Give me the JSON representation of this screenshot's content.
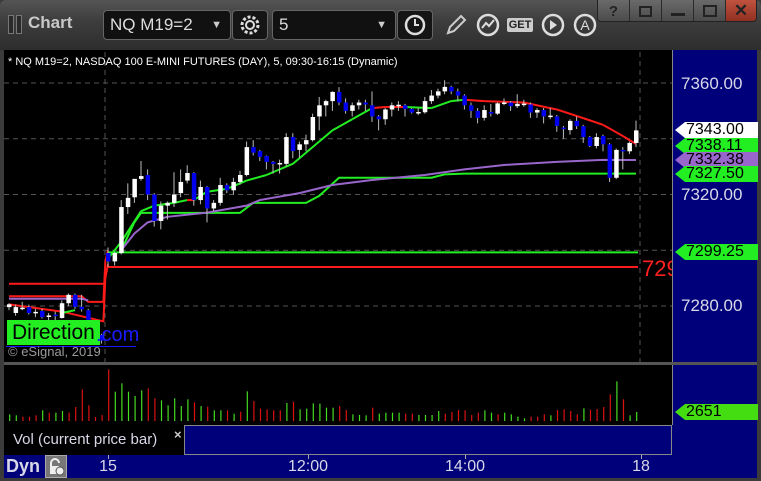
{
  "window": {
    "title": "Chart",
    "buttons": [
      "?",
      "restore",
      "minimize",
      "maximize",
      "close"
    ]
  },
  "toolbar": {
    "symbol": "NQ M19=2",
    "interval": "5",
    "icons": [
      "gear-icon",
      "clock-icon",
      "pencil-icon",
      "chart-wizard-icon",
      "get-icon",
      "play-icon",
      "alert-icon"
    ],
    "get_label": "GET"
  },
  "chart": {
    "header": "* NQ M19=2, NASDAQ 100 E-MINI FUTURES (DAY), 5, 09:30-16:15 (Dynamic)",
    "price_ticks": [
      "7360.00",
      "7320.00",
      "7280.00"
    ],
    "tags": {
      "last": "7343.00",
      "ma": "7338.11",
      "vwap": "7332.38",
      "low_line": "7327.50",
      "level_green": "7299.25"
    },
    "level_red_text": "729",
    "watermark": {
      "main": "Direction",
      "suffix": ".com"
    },
    "copyright": "© eSignal, 2019"
  },
  "volume": {
    "legend": "Vol (current price bar)",
    "close_label": "×",
    "tag": "2651"
  },
  "time_axis": {
    "mode": "Dyn",
    "labels": [
      "15",
      "12:00",
      "14:00",
      "18"
    ]
  },
  "colors": {
    "up_candle": "#ffffff",
    "down_candle": "#0000ee",
    "ma_up": "#22ee22",
    "ma_down": "#ff1a1a",
    "vwap": "#9966cc",
    "axis_bg": "#00007a",
    "vol_up": "#44dd22",
    "vol_down": "#dd1111"
  },
  "chart_data": {
    "type": "candlestick",
    "symbol": "NQ M19=2",
    "bar_interval_minutes": 5,
    "ylim": [
      7258,
      7368
    ],
    "yticks": [
      7280,
      7300,
      7320,
      7340,
      7360
    ],
    "grid": true,
    "candles_ohlc": [
      [
        7279.6,
        7281,
        7278.5,
        7280.6
      ],
      [
        7277.5,
        7280.5,
        7276.5,
        7279.6
      ],
      [
        7279.3,
        7281.5,
        7278.5,
        7279.4
      ],
      [
        7279.6,
        7280.5,
        7277,
        7277.5
      ],
      [
        7277.8,
        7279,
        7276,
        7277.9
      ],
      [
        7278.2,
        7279,
        7275.5,
        7276
      ],
      [
        7276.4,
        7277.5,
        7274,
        7276.6
      ],
      [
        7276.9,
        7278,
        7274.8,
        7276.5
      ],
      [
        7275.7,
        7282,
        7275.5,
        7281
      ],
      [
        7281,
        7284.5,
        7280,
        7284
      ],
      [
        7284,
        7284.5,
        7279,
        7279.7
      ],
      [
        7279.7,
        7284,
        7278,
        7278.8
      ],
      [
        7278.5,
        7279,
        7270,
        7272
      ],
      [
        7272,
        7273,
        7268.5,
        7269.6
      ],
      [
        7269.6,
        7270,
        7266.5,
        7267.6
      ],
      [
        7299,
        7301,
        7294,
        7296
      ],
      [
        7296,
        7299.5,
        7294.5,
        7299
      ],
      [
        7299,
        7318,
        7298.5,
        7315.5
      ],
      [
        7315.5,
        7324,
        7313,
        7318.8
      ],
      [
        7319,
        7325.6,
        7317,
        7325.6
      ],
      [
        7325.6,
        7332,
        7325,
        7326.6
      ],
      [
        7327,
        7329,
        7318,
        7320
      ],
      [
        7320,
        7320.5,
        7308.5,
        7310.5
      ],
      [
        7310.5,
        7317.5,
        7307.5,
        7316
      ],
      [
        7316,
        7317.5,
        7311,
        7317
      ],
      [
        7317,
        7328,
        7315.5,
        7320
      ],
      [
        7320.5,
        7329,
        7319,
        7324.5
      ],
      [
        7325,
        7330.5,
        7324,
        7327.7
      ],
      [
        7327.7,
        7328,
        7316,
        7318
      ],
      [
        7318,
        7325,
        7316.5,
        7322.7
      ],
      [
        7322.7,
        7323,
        7310,
        7315
      ],
      [
        7315,
        7318,
        7314,
        7317
      ],
      [
        7317,
        7326,
        7316,
        7323.4
      ],
      [
        7323.4,
        7324,
        7320.5,
        7321.5
      ],
      [
        7321.5,
        7326,
        7320,
        7324.5
      ],
      [
        7324.5,
        7328.5,
        7323.5,
        7327
      ],
      [
        7327,
        7339,
        7326.5,
        7337
      ],
      [
        7337,
        7339.5,
        7334,
        7335
      ],
      [
        7335.6,
        7336,
        7332,
        7333.5
      ],
      [
        7333.8,
        7334,
        7329,
        7331.7
      ],
      [
        7331.7,
        7332,
        7327.5,
        7331
      ],
      [
        7331,
        7332.5,
        7327.5,
        7331.3
      ],
      [
        7331,
        7342,
        7330,
        7340.6
      ],
      [
        7340.6,
        7342,
        7333,
        7335.6
      ],
      [
        7336,
        7339,
        7333,
        7338
      ],
      [
        7338,
        7341.5,
        7335.5,
        7339.5
      ],
      [
        7339.5,
        7349,
        7339,
        7347.8
      ],
      [
        7348,
        7355,
        7343,
        7352
      ],
      [
        7352,
        7354,
        7348,
        7353.5
      ],
      [
        7353.5,
        7357,
        7350,
        7356.8
      ],
      [
        7356.8,
        7358.5,
        7352,
        7353
      ],
      [
        7353,
        7354.5,
        7349,
        7350
      ],
      [
        7350,
        7353,
        7348,
        7352
      ],
      [
        7352,
        7354,
        7350.5,
        7353
      ],
      [
        7353,
        7354,
        7350,
        7352.3
      ],
      [
        7352,
        7357,
        7346,
        7348
      ],
      [
        7348,
        7348.5,
        7343,
        7347
      ],
      [
        7347,
        7351,
        7345,
        7350.5
      ],
      [
        7350.5,
        7353,
        7348,
        7352
      ],
      [
        7352,
        7353.5,
        7350,
        7352.2
      ],
      [
        7352,
        7352.5,
        7348,
        7350.7
      ],
      [
        7350.7,
        7351,
        7349,
        7349.4
      ],
      [
        7349.4,
        7351,
        7348.5,
        7349.6
      ],
      [
        7349.5,
        7355,
        7349,
        7353.5
      ],
      [
        7353.5,
        7357.5,
        7352.5,
        7355.5
      ],
      [
        7355.5,
        7358,
        7354.5,
        7357
      ],
      [
        7357,
        7361,
        7356,
        7358.6
      ],
      [
        7358.6,
        7359,
        7356,
        7357
      ],
      [
        7357,
        7358,
        7353.5,
        7355.5
      ],
      [
        7355.5,
        7356,
        7350.5,
        7352
      ],
      [
        7352,
        7353,
        7347.5,
        7350
      ],
      [
        7350,
        7351,
        7345.5,
        7347.5
      ],
      [
        7347.5,
        7352,
        7346.5,
        7350.3
      ],
      [
        7349.6,
        7352.5,
        7348,
        7349
      ],
      [
        7349,
        7353,
        7348.5,
        7352.7
      ],
      [
        7352.7,
        7354.5,
        7352,
        7353
      ],
      [
        7353,
        7353.5,
        7350,
        7351.7
      ],
      [
        7351.7,
        7356,
        7351,
        7352.5
      ],
      [
        7352.3,
        7354,
        7351.5,
        7352.6
      ],
      [
        7352.3,
        7353,
        7347.5,
        7349.4
      ],
      [
        7349.4,
        7351,
        7347.5,
        7350.3
      ],
      [
        7350.3,
        7351,
        7345.5,
        7348
      ],
      [
        7348,
        7351,
        7347,
        7348.3
      ],
      [
        7348,
        7348.5,
        7342.5,
        7344.6
      ],
      [
        7344,
        7344.6,
        7340,
        7343.5
      ],
      [
        7343.1,
        7347,
        7341.5,
        7346.4
      ],
      [
        7346.4,
        7348,
        7343.5,
        7344.5
      ],
      [
        7344.5,
        7345,
        7338.5,
        7340.6
      ],
      [
        7340.6,
        7341,
        7337,
        7337.4
      ],
      [
        7337.4,
        7342,
        7336.5,
        7340.6
      ],
      [
        7341,
        7341.5,
        7335.5,
        7338
      ],
      [
        7338,
        7338.5,
        7324.5,
        7326
      ],
      [
        7326,
        7336.5,
        7325.5,
        7336
      ],
      [
        7336,
        7337,
        7329,
        7335.5
      ],
      [
        7335.5,
        7339,
        7334.5,
        7338.5
      ],
      [
        7338.5,
        7346.5,
        7337,
        7343
      ]
    ],
    "ma_points": [
      [
        15,
        7297,
        "r"
      ],
      [
        17,
        7303,
        "g"
      ],
      [
        20,
        7314,
        "g"
      ],
      [
        22,
        7316,
        "g"
      ],
      [
        25,
        7317,
        "g"
      ],
      [
        27,
        7318,
        "g"
      ],
      [
        28,
        7318,
        "r"
      ],
      [
        30,
        7321,
        "g"
      ],
      [
        33,
        7322,
        "g"
      ],
      [
        36,
        7325,
        "g"
      ],
      [
        39,
        7327,
        "g"
      ],
      [
        43,
        7331,
        "g"
      ],
      [
        49,
        7343,
        "g"
      ],
      [
        52,
        7347,
        "g"
      ],
      [
        55,
        7351,
        "g"
      ],
      [
        57,
        7351.4,
        "r"
      ],
      [
        60,
        7351.4,
        "r"
      ],
      [
        64,
        7351,
        "g"
      ],
      [
        67,
        7353.5,
        "g"
      ],
      [
        69,
        7354,
        "g"
      ],
      [
        72,
        7353.5,
        "r"
      ],
      [
        78,
        7353,
        "r"
      ],
      [
        83,
        7350.5,
        "r"
      ],
      [
        87,
        7347.4,
        "r"
      ],
      [
        90,
        7345,
        "r"
      ],
      [
        93,
        7341,
        "r"
      ],
      [
        95,
        7338.11,
        "r"
      ]
    ],
    "vwap_points": [
      [
        17,
        7300
      ],
      [
        19,
        7306
      ],
      [
        21,
        7310
      ],
      [
        24,
        7312
      ],
      [
        30,
        7313.5
      ],
      [
        36,
        7316
      ],
      [
        38,
        7318
      ],
      [
        44,
        7320.5
      ],
      [
        49,
        7323.4
      ],
      [
        55,
        7325.2
      ],
      [
        63,
        7327
      ],
      [
        69,
        7329
      ],
      [
        75,
        7330.6
      ],
      [
        83,
        7331.7
      ],
      [
        90,
        7332.4
      ],
      [
        95,
        7332.38
      ]
    ],
    "low_line_points": [
      [
        17,
        7300
      ],
      [
        19,
        7310
      ],
      [
        20,
        7313.4
      ],
      [
        35,
        7313.4
      ],
      [
        37,
        7317
      ],
      [
        45,
        7317
      ],
      [
        47,
        7319.5
      ],
      [
        50,
        7326
      ],
      [
        64,
        7326
      ],
      [
        66,
        7327.2
      ],
      [
        69,
        7327.5
      ],
      [
        95,
        7327.5
      ]
    ],
    "prior_lines": {
      "red_top": [
        [
          0,
          7288
        ],
        [
          14.5,
          7288
        ]
      ],
      "red_mid": [
        [
          0,
          7283.5
        ],
        [
          11,
          7283.5
        ],
        [
          12,
          7281.5
        ],
        [
          14.3,
          7281.5
        ],
        [
          14.6,
          7296
        ],
        [
          15,
          7300
        ]
      ],
      "purple": [
        [
          0,
          7282.6
        ],
        [
          11,
          7282.6
        ],
        [
          12,
          7282
        ]
      ],
      "red_low": [
        [
          0,
          7280.6
        ],
        [
          8,
          7278
        ],
        [
          14.3,
          7274.5
        ],
        [
          14.6,
          7290
        ],
        [
          15,
          7295
        ]
      ],
      "green": [
        [
          8,
          7277.5
        ],
        [
          10,
          7278.5
        ]
      ]
    },
    "levels": [
      {
        "price": 7299.25,
        "color": "#22ee22"
      },
      {
        "price": 7294,
        "color": "#ff1a1a"
      }
    ],
    "volume": [
      1970,
      1670,
      1280,
      1280,
      1670,
      3150,
      2460,
      2460,
      2950,
      2460,
      4130,
      9340,
      4620,
      1180,
      1770,
      15240,
      8650,
      11110,
      8650,
      7370,
      9040,
      9630,
      6690,
      6100,
      4620,
      6690,
      4420,
      6390,
      5500,
      4420,
      4230,
      3150,
      3150,
      3150,
      2160,
      2750,
      8750,
      5900,
      3640,
      3440,
      3150,
      3150,
      5310,
      5700,
      3440,
      3640,
      5210,
      5110,
      3930,
      3930,
      4420,
      3240,
      1970,
      1770,
      1670,
      3930,
      2160,
      2460,
      2460,
      2460,
      2160,
      2160,
      1770,
      1770,
      1770,
      2950,
      2160,
      2650,
      3240,
      3150,
      1770,
      2460,
      3150,
      2460,
      1970,
      2460,
      1970,
      1280,
      790,
      1280,
      1280,
      1970,
      1670,
      3240,
      3440,
      2950,
      1970,
      3740,
      3340,
      3540,
      4130,
      7860,
      11700,
      6390,
      1670,
      2651
    ],
    "volume_colors": "ggrrrgrggrrrrrrrgggggrrgggggrgrggrgrgrrrrrgrggggggrrgggrggggrrggggrrrrrrggrggggrrrgrrrrgrrrrgrgg"
  }
}
